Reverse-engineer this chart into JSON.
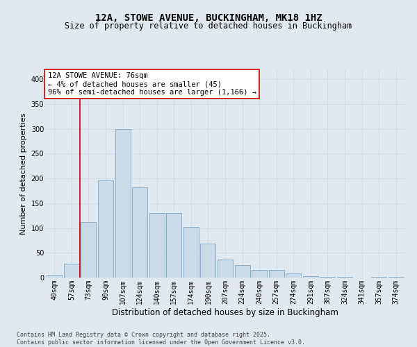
{
  "title1": "12A, STOWE AVENUE, BUCKINGHAM, MK18 1HZ",
  "title2": "Size of property relative to detached houses in Buckingham",
  "xlabel": "Distribution of detached houses by size in Buckingham",
  "ylabel": "Number of detached properties",
  "categories": [
    "40sqm",
    "57sqm",
    "73sqm",
    "90sqm",
    "107sqm",
    "124sqm",
    "140sqm",
    "157sqm",
    "174sqm",
    "190sqm",
    "207sqm",
    "224sqm",
    "240sqm",
    "257sqm",
    "274sqm",
    "291sqm",
    "307sqm",
    "324sqm",
    "341sqm",
    "357sqm",
    "374sqm"
  ],
  "values": [
    5,
    28,
    112,
    196,
    300,
    182,
    130,
    130,
    102,
    68,
    36,
    25,
    16,
    16,
    8,
    3,
    1,
    1,
    0,
    1,
    1
  ],
  "bar_color": "#ccd9e8",
  "bar_edge_color": "#7aaac8",
  "vline_x": 1.5,
  "vline_color": "#cc0000",
  "annotation_text": "12A STOWE AVENUE: 76sqm\n← 4% of detached houses are smaller (45)\n96% of semi-detached houses are larger (1,166) →",
  "annotation_box_facecolor": "#ffffff",
  "annotation_box_edgecolor": "#cc0000",
  "ylim": [
    0,
    420
  ],
  "yticks": [
    0,
    50,
    100,
    150,
    200,
    250,
    300,
    350,
    400
  ],
  "bg_color": "#e0e8f0",
  "footer_text": "Contains HM Land Registry data © Crown copyright and database right 2025.\nContains public sector information licensed under the Open Government Licence v3.0.",
  "title1_fontsize": 10,
  "title2_fontsize": 8.5,
  "xlabel_fontsize": 8.5,
  "ylabel_fontsize": 8,
  "tick_fontsize": 7,
  "annot_fontsize": 7.5,
  "footer_fontsize": 6,
  "grid_color": "#d0dce8",
  "grid_linewidth": 0.7
}
